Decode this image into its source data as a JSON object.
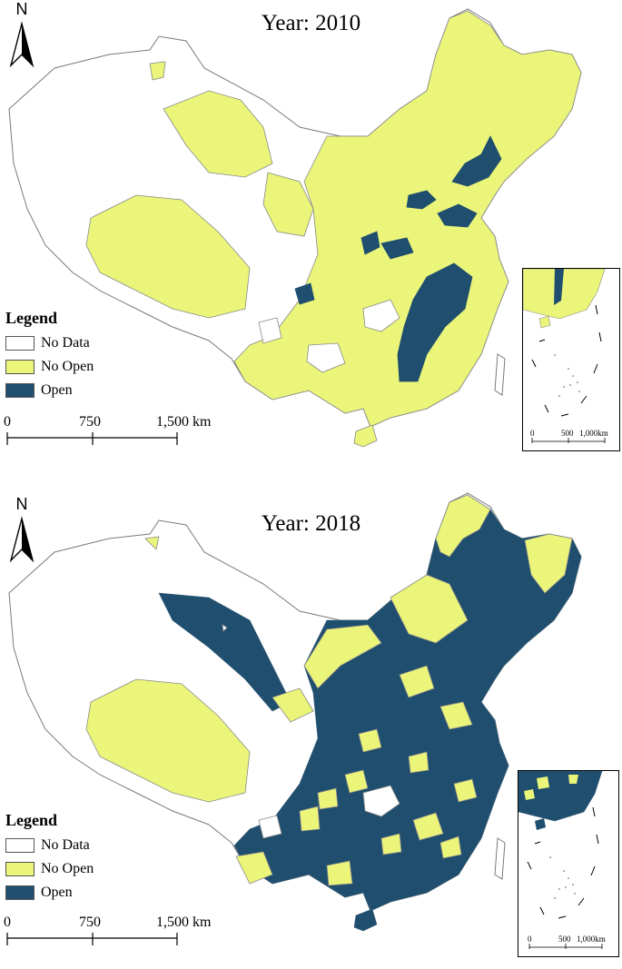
{
  "colors": {
    "no_data": "#ffffff",
    "no_open": "#eaf57a",
    "open": "#1f4e6e",
    "border": "#7a7a7a"
  },
  "legend": {
    "title": "Legend",
    "items": [
      {
        "key": "no_data",
        "label": "No Data"
      },
      {
        "key": "no_open",
        "label": "No Open"
      },
      {
        "key": "open",
        "label": "Open"
      }
    ]
  },
  "north_arrow": {
    "label": "N"
  },
  "scalebar": {
    "labels": [
      "0",
      "750",
      "1,500 km"
    ]
  },
  "inset": {
    "scale_labels": [
      "0",
      "500",
      "1,000km"
    ]
  },
  "maps": [
    {
      "title": "Year: 2010"
    },
    {
      "title": "Year: 2018"
    }
  ]
}
